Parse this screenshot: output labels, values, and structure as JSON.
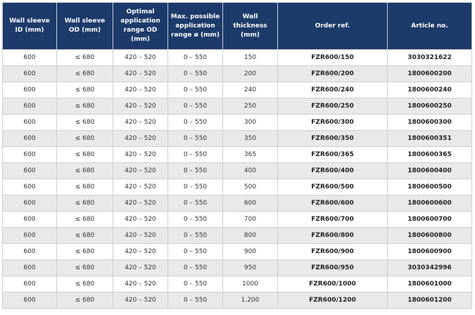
{
  "table": {
    "header": [
      "Wall sleeve ID (mm)",
      "Wall sleeve OD (mm)",
      "Optimal application range OD (mm)",
      "Max. possible application range ø (mm)",
      "Wall thickness (mm)",
      "Order ref.",
      "Article no."
    ],
    "rows": [
      [
        "600",
        "≤ 680",
        "420 – 520",
        "0 – 550",
        "150",
        "FZR600/150",
        "3030321622"
      ],
      [
        "600",
        "≤ 680",
        "420 – 520",
        "0 – 550",
        "200",
        "FZR600/200",
        "1800600200"
      ],
      [
        "600",
        "≤ 680",
        "420 – 520",
        "0 – 550",
        "240",
        "FZR600/240",
        "1800600240"
      ],
      [
        "600",
        "≤ 680",
        "420 – 520",
        "0 – 550",
        "250",
        "FZR600/250",
        "1800600250"
      ],
      [
        "600",
        "≤ 680",
        "420 – 520",
        "0 – 550",
        "300",
        "FZR600/300",
        "1800600300"
      ],
      [
        "600",
        "≤ 680",
        "420 – 520",
        "0 – 550",
        "350",
        "FZR600/350",
        "1800600351"
      ],
      [
        "600",
        "≤ 680",
        "420 – 520",
        "0 – 550",
        "365",
        "FZR600/365",
        "1800600365"
      ],
      [
        "600",
        "≤ 680",
        "420 – 520",
        "0 – 550",
        "400",
        "FZR600/400",
        "1800600400"
      ],
      [
        "600",
        "≤ 680",
        "420 – 520",
        "0 – 550",
        "500",
        "FZR600/500",
        "1800600500"
      ],
      [
        "600",
        "≤ 680",
        "420 – 520",
        "0 – 550",
        "600",
        "FZR600/600",
        "1800600600"
      ],
      [
        "600",
        "≤ 680",
        "420 – 520",
        "0 – 550",
        "700",
        "FZR600/700",
        "1800600700"
      ],
      [
        "600",
        "≤ 680",
        "420 – 520",
        "0 – 550",
        "800",
        "FZR600/800",
        "1800600800"
      ],
      [
        "600",
        "≤ 680",
        "420 – 520",
        "0 – 550",
        "900",
        "FZR600/900",
        "1800600900"
      ],
      [
        "600",
        "≤ 680",
        "420 – 520",
        "0 – 550",
        "950",
        "FZR600/950",
        "3030342996"
      ],
      [
        "600",
        "≤ 680",
        "420 – 520",
        "0 – 550",
        "1000",
        "FZR600/1000",
        "1800601000"
      ],
      [
        "600",
        "≤ 680",
        "420 – 520",
        "0 – 550",
        "1.200",
        "FZR600/1200",
        "1800601200"
      ]
    ]
  }
}
